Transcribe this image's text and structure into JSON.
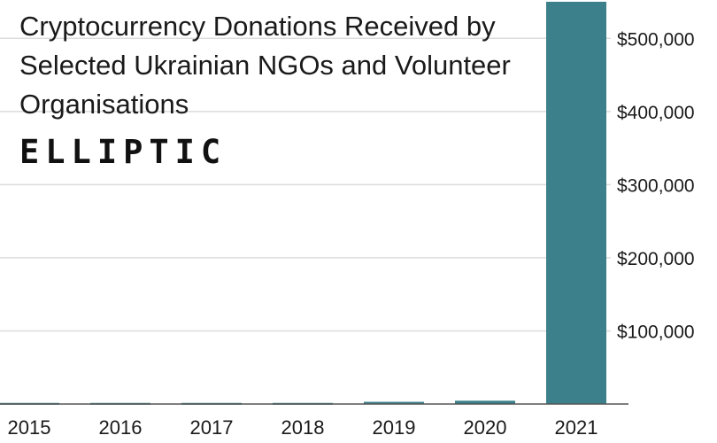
{
  "chart_data": {
    "type": "bar",
    "title": "Cryptocurrency Donations Received by Selected Ukrainian NGOs and Volunteer Organisations",
    "categories": [
      "2015",
      "2016",
      "2017",
      "2018",
      "2019",
      "2020",
      "2021"
    ],
    "values": [
      1500,
      1500,
      1500,
      1500,
      3000,
      4500,
      550000
    ],
    "ylim": [
      0,
      550000
    ],
    "yticks": [
      100000,
      200000,
      300000,
      400000,
      500000
    ],
    "ytick_labels": [
      "$100,000",
      "$200,000",
      "$300,000",
      "$400,000",
      "$500,000"
    ],
    "y_axis_side": "right",
    "grid": true,
    "bar_color": "#3b808a",
    "logo_text": "ELLIPTIC"
  }
}
